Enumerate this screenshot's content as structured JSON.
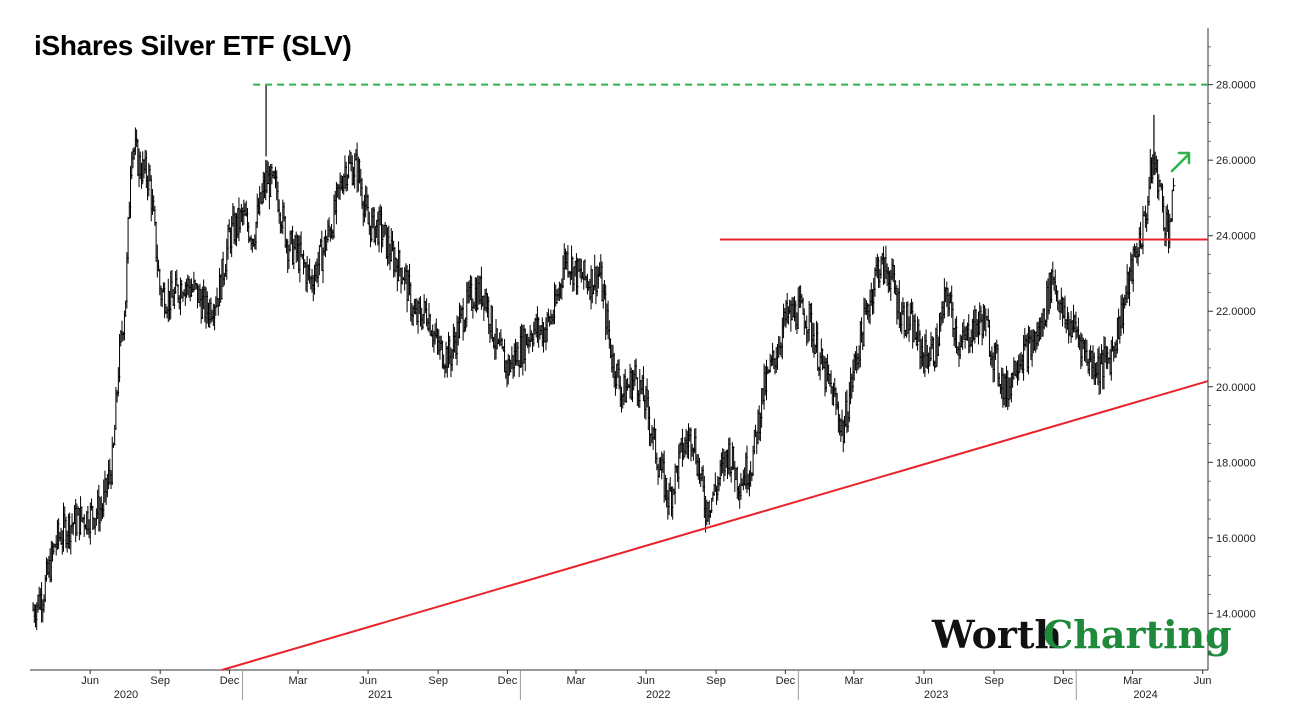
{
  "chart_data": {
    "type": "line",
    "title": "iShares Silver ETF (SLV)",
    "xlabel": "",
    "ylabel": "",
    "ylim": [
      12.5,
      29.5
    ],
    "y_ticks": [
      "14.0000",
      "16.0000",
      "18.0000",
      "20.0000",
      "22.0000",
      "24.0000",
      "26.0000",
      "28.0000"
    ],
    "x_month_ticks": [
      {
        "date": "2020-06",
        "label": "Jun"
      },
      {
        "date": "2020-09",
        "label": "Sep"
      },
      {
        "date": "2020-12",
        "label": "Dec"
      },
      {
        "date": "2021-03",
        "label": "Mar"
      },
      {
        "date": "2021-06",
        "label": "Jun"
      },
      {
        "date": "2021-09",
        "label": "Sep"
      },
      {
        "date": "2021-12",
        "label": "Dec"
      },
      {
        "date": "2022-03",
        "label": "Mar"
      },
      {
        "date": "2022-06",
        "label": "Jun"
      },
      {
        "date": "2022-09",
        "label": "Sep"
      },
      {
        "date": "2022-12",
        "label": "Dec"
      },
      {
        "date": "2023-03",
        "label": "Mar"
      },
      {
        "date": "2023-06",
        "label": "Jun"
      },
      {
        "date": "2023-09",
        "label": "Sep"
      },
      {
        "date": "2023-12",
        "label": "Dec"
      },
      {
        "date": "2024-03",
        "label": "Mar"
      },
      {
        "date": "2024-06",
        "label": "Jun"
      }
    ],
    "x_year_ticks": [
      {
        "date": "2020-08",
        "label": "2020"
      },
      {
        "date": "2021-07",
        "label": "2021"
      },
      {
        "date": "2022-07",
        "label": "2022"
      },
      {
        "date": "2023-07",
        "label": "2023"
      },
      {
        "date": "2024-04",
        "label": "2024"
      }
    ],
    "x_range": [
      "2020-03-28",
      "2024-06-22"
    ],
    "series": [
      {
        "style": "price-bars",
        "color": "#000000",
        "points": [
          [
            "2020-04-01",
            14.1
          ],
          [
            "2020-04-15",
            14.6
          ],
          [
            "2020-05-01",
            15.9
          ],
          [
            "2020-05-15",
            16.3
          ],
          [
            "2020-06-01",
            16.5
          ],
          [
            "2020-06-15",
            16.6
          ],
          [
            "2020-07-01",
            16.8
          ],
          [
            "2020-07-15",
            18.1
          ],
          [
            "2020-07-22",
            20.5
          ],
          [
            "2020-08-01",
            22.5
          ],
          [
            "2020-08-08",
            26.5
          ],
          [
            "2020-08-20",
            25.8
          ],
          [
            "2020-09-01",
            25.5
          ],
          [
            "2020-09-15",
            22.5
          ],
          [
            "2020-10-01",
            22.3
          ],
          [
            "2020-10-15",
            22.8
          ],
          [
            "2020-11-01",
            22.5
          ],
          [
            "2020-11-15",
            22.0
          ],
          [
            "2020-12-01",
            22.5
          ],
          [
            "2020-12-15",
            24.0
          ],
          [
            "2021-01-01",
            24.5
          ],
          [
            "2021-01-15",
            24.0
          ],
          [
            "2021-02-01",
            25.5
          ],
          [
            "2021-02-15",
            25.2
          ],
          [
            "2021-03-01",
            23.8
          ],
          [
            "2021-03-15",
            23.5
          ],
          [
            "2021-04-01",
            22.8
          ],
          [
            "2021-04-15",
            23.5
          ],
          [
            "2021-05-01",
            24.5
          ],
          [
            "2021-05-15",
            25.8
          ],
          [
            "2021-06-01",
            25.8
          ],
          [
            "2021-06-15",
            24.3
          ],
          [
            "2021-07-01",
            24.2
          ],
          [
            "2021-07-15",
            23.5
          ],
          [
            "2021-08-01",
            23.0
          ],
          [
            "2021-08-15",
            21.8
          ],
          [
            "2021-09-01",
            22.0
          ],
          [
            "2021-09-15",
            21.0
          ],
          [
            "2021-10-01",
            20.8
          ],
          [
            "2021-10-15",
            21.8
          ],
          [
            "2021-11-01",
            22.5
          ],
          [
            "2021-11-15",
            22.5
          ],
          [
            "2021-12-01",
            21.0
          ],
          [
            "2021-12-15",
            20.5
          ],
          [
            "2022-01-01",
            21.0
          ],
          [
            "2022-01-15",
            21.5
          ],
          [
            "2022-02-01",
            21.5
          ],
          [
            "2022-02-15",
            22.0
          ],
          [
            "2022-03-01",
            23.5
          ],
          [
            "2022-03-15",
            23.0
          ],
          [
            "2022-04-01",
            22.8
          ],
          [
            "2022-04-15",
            23.0
          ],
          [
            "2022-05-01",
            20.8
          ],
          [
            "2022-05-15",
            19.8
          ],
          [
            "2022-06-01",
            20.3
          ],
          [
            "2022-06-15",
            19.5
          ],
          [
            "2022-07-01",
            18.0
          ],
          [
            "2022-07-15",
            17.0
          ],
          [
            "2022-08-01",
            18.3
          ],
          [
            "2022-08-15",
            18.8
          ],
          [
            "2022-09-01",
            16.8
          ],
          [
            "2022-09-15",
            17.3
          ],
          [
            "2022-10-01",
            18.3
          ],
          [
            "2022-10-15",
            17.5
          ],
          [
            "2022-11-01",
            18.0
          ],
          [
            "2022-11-15",
            19.8
          ],
          [
            "2022-12-01",
            20.8
          ],
          [
            "2022-12-15",
            21.8
          ],
          [
            "2023-01-01",
            22.0
          ],
          [
            "2023-01-15",
            21.8
          ],
          [
            "2023-02-01",
            20.5
          ],
          [
            "2023-02-15",
            19.8
          ],
          [
            "2023-03-01",
            18.8
          ],
          [
            "2023-03-15",
            20.5
          ],
          [
            "2023-04-01",
            22.0
          ],
          [
            "2023-04-15",
            23.2
          ],
          [
            "2023-05-01",
            23.0
          ],
          [
            "2023-05-15",
            22.0
          ],
          [
            "2023-06-01",
            21.5
          ],
          [
            "2023-06-15",
            20.8
          ],
          [
            "2023-07-01",
            21.0
          ],
          [
            "2023-07-15",
            22.5
          ],
          [
            "2023-08-01",
            21.0
          ],
          [
            "2023-08-15",
            21.5
          ],
          [
            "2023-09-01",
            21.8
          ],
          [
            "2023-09-15",
            20.8
          ],
          [
            "2023-10-01",
            19.8
          ],
          [
            "2023-10-15",
            20.8
          ],
          [
            "2023-11-01",
            21.0
          ],
          [
            "2023-11-15",
            21.5
          ],
          [
            "2023-12-01",
            23.0
          ],
          [
            "2023-12-15",
            21.8
          ],
          [
            "2024-01-01",
            21.5
          ],
          [
            "2024-01-15",
            20.8
          ],
          [
            "2024-02-01",
            20.5
          ],
          [
            "2024-02-15",
            20.8
          ],
          [
            "2024-03-01",
            22.0
          ],
          [
            "2024-03-15",
            23.2
          ],
          [
            "2024-04-01",
            24.5
          ],
          [
            "2024-04-10",
            26.0
          ],
          [
            "2024-04-18",
            25.5
          ],
          [
            "2024-04-25",
            24.5
          ],
          [
            "2024-05-01",
            24.2
          ],
          [
            "2024-05-08",
            25.0
          ]
        ]
      },
      {
        "style": "resistance",
        "color": "#e8232b",
        "points": [
          [
            "2022-09-20",
            23.9
          ],
          [
            "2024-06-22",
            23.9
          ]
        ]
      },
      {
        "style": "support",
        "color": "#e8232b",
        "points": [
          [
            "2020-12-05",
            12.5
          ],
          [
            "2024-06-22",
            20.15
          ]
        ]
      },
      {
        "style": "target",
        "color": "#2db34a",
        "points": [
          [
            "2021-01-15",
            28.0
          ],
          [
            "2024-06-22",
            28.0
          ]
        ]
      }
    ]
  },
  "branding": {
    "worth": "Worth",
    "charting": "Charting",
    "charting_color": "#1f8a3c"
  },
  "colors": {
    "up_arrow": "#2db34a"
  }
}
